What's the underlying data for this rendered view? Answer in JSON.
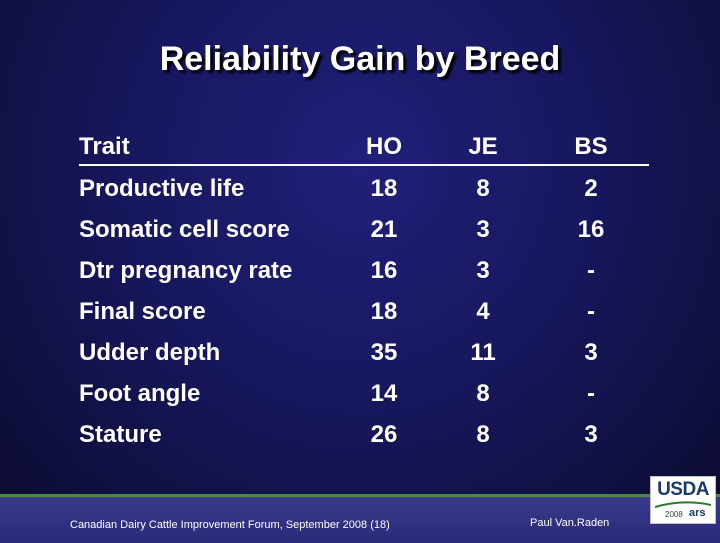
{
  "slide": {
    "title": "Reliability Gain by Breed"
  },
  "table": {
    "headers": [
      "Trait",
      "HO",
      "JE",
      "BS"
    ],
    "rows": [
      [
        "Productive life",
        "18",
        "8",
        "2"
      ],
      [
        "Somatic cell score",
        "21",
        "3",
        "16"
      ],
      [
        "Dtr pregnancy rate",
        "16",
        "3",
        "-"
      ],
      [
        "Final score",
        "18",
        "4",
        "-"
      ],
      [
        "Udder depth",
        "35",
        "11",
        "3"
      ],
      [
        "Foot angle",
        "14",
        "8",
        "-"
      ],
      [
        "Stature",
        "26",
        "8",
        "3"
      ]
    ]
  },
  "footer": {
    "event": "Canadian Dairy Cattle Improvement Forum, September 2008 (18)",
    "author": "Paul Van.Raden"
  },
  "logo": {
    "name": "USDA",
    "year": "2008",
    "mark": "ars"
  }
}
